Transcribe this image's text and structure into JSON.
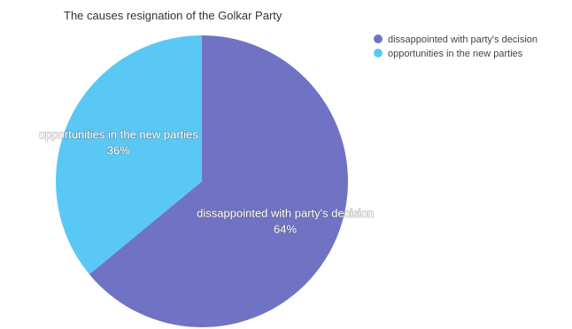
{
  "chart_data": {
    "type": "pie",
    "title": "The causes resignation of the Golkar Party",
    "slices": [
      {
        "label": "dissappointed with party's decision",
        "value": 64,
        "percent_label": "64%",
        "color": "#7072c4"
      },
      {
        "label": "opportunities in the new parties",
        "value": 36,
        "percent_label": "36%",
        "color": "#5ac8f5"
      }
    ],
    "legend": {
      "placement": "top-right",
      "items": [
        "dissappointed with party's decision",
        "opportunities in the new parties"
      ]
    }
  }
}
